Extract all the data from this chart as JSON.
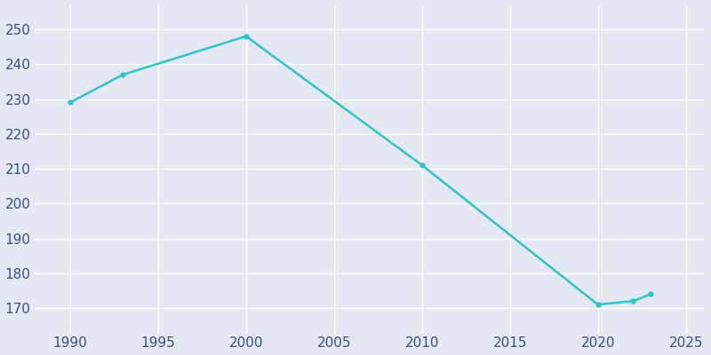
{
  "years": [
    1990,
    1993,
    2000,
    2010,
    2020,
    2022,
    2023
  ],
  "population": [
    229,
    237,
    248,
    211,
    171,
    172,
    174
  ],
  "line_color": "#2DC5C5",
  "bg_color": "#E3E8F2",
  "grid_color": "#FFFFFF",
  "tick_color": "#3D4F82",
  "xlim": [
    1988,
    2026
  ],
  "ylim": [
    163,
    257
  ],
  "yticks": [
    170,
    180,
    190,
    200,
    210,
    220,
    230,
    240,
    250
  ],
  "xticks": [
    1990,
    1995,
    2000,
    2005,
    2010,
    2015,
    2020,
    2025
  ],
  "tick_fontsize": 11
}
